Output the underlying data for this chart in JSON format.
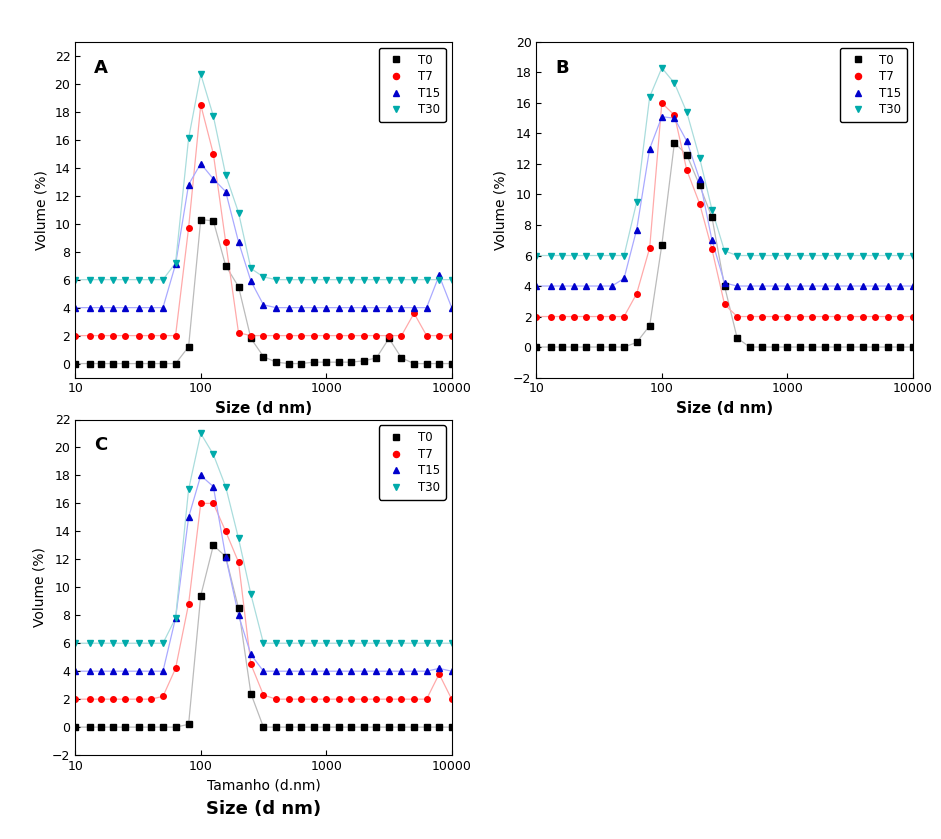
{
  "panels": [
    "A",
    "B",
    "C"
  ],
  "xlabel_A": "Size (d nm)",
  "xlabel_B": "Size (d nm)",
  "xlabel_C": "Tamanho (d.nm)",
  "xlabel_bottom": "Size (d nm)",
  "ylabel": "Volume (%)",
  "legend_labels": [
    "T0",
    "T7",
    "T15",
    "T30"
  ],
  "colors": [
    "black",
    "red",
    "#0000cc",
    "#00aaaa"
  ],
  "line_colors": [
    "#bbbbbb",
    "#ffaaaa",
    "#aaaaff",
    "#aadddd"
  ],
  "markers": [
    "s",
    "o",
    "^",
    "v"
  ],
  "xlim": [
    10,
    10000
  ],
  "A": {
    "ylim": [
      -1,
      23
    ],
    "yticks": [
      0,
      2,
      4,
      6,
      8,
      10,
      12,
      14,
      16,
      18,
      20,
      22
    ],
    "T0": {
      "x": [
        10,
        13,
        16,
        20,
        25,
        32,
        40,
        50,
        63,
        80,
        100,
        126,
        158,
        200,
        251,
        316,
        398,
        501,
        631,
        794,
        1000,
        1259,
        1585,
        1995,
        2512,
        3162,
        3981,
        5012,
        6310,
        7943,
        10000
      ],
      "y": [
        0,
        0,
        0,
        0,
        0,
        0,
        0,
        0,
        0,
        1.2,
        10.3,
        10.2,
        7.0,
        5.5,
        1.8,
        0.5,
        0.1,
        0,
        0,
        0.1,
        0.1,
        0.1,
        0.1,
        0.2,
        0.4,
        1.8,
        0.4,
        0,
        0,
        0,
        0
      ]
    },
    "T7": {
      "x": [
        10,
        13,
        16,
        20,
        25,
        32,
        40,
        50,
        63,
        80,
        100,
        126,
        158,
        200,
        251,
        316,
        398,
        501,
        631,
        794,
        1000,
        1259,
        1585,
        1995,
        2512,
        3162,
        3981,
        5012,
        6310,
        7943,
        10000
      ],
      "y": [
        2,
        2,
        2,
        2,
        2,
        2,
        2,
        2,
        2,
        9.7,
        18.5,
        15.0,
        8.7,
        2.2,
        2,
        2,
        2,
        2,
        2,
        2,
        2,
        2,
        2,
        2,
        2,
        2,
        2,
        3.6,
        2,
        2,
        2
      ]
    },
    "T15": {
      "x": [
        10,
        13,
        16,
        20,
        25,
        32,
        40,
        50,
        63,
        80,
        100,
        126,
        158,
        200,
        251,
        316,
        398,
        501,
        631,
        794,
        1000,
        1259,
        1585,
        1995,
        2512,
        3162,
        3981,
        5012,
        6310,
        7943,
        10000
      ],
      "y": [
        4,
        4,
        4,
        4,
        4,
        4,
        4,
        4,
        7.1,
        12.8,
        14.3,
        13.2,
        12.3,
        8.7,
        5.9,
        4.2,
        4,
        4,
        4,
        4,
        4,
        4,
        4,
        4,
        4,
        4,
        4,
        4,
        4,
        6.3,
        4
      ]
    },
    "T30": {
      "x": [
        10,
        13,
        16,
        20,
        25,
        32,
        40,
        50,
        63,
        80,
        100,
        126,
        158,
        200,
        251,
        316,
        398,
        501,
        631,
        794,
        1000,
        1259,
        1585,
        1995,
        2512,
        3162,
        3981,
        5012,
        6310,
        7943,
        10000
      ],
      "y": [
        6,
        6,
        6,
        6,
        6,
        6,
        6,
        6,
        7.2,
        16.1,
        20.7,
        17.7,
        13.5,
        10.8,
        6.8,
        6.2,
        6,
        6,
        6,
        6,
        6,
        6,
        6,
        6,
        6,
        6,
        6,
        6,
        6,
        6,
        6
      ]
    }
  },
  "B": {
    "ylim": [
      -2,
      20
    ],
    "yticks": [
      -2,
      0,
      2,
      4,
      6,
      8,
      10,
      12,
      14,
      16,
      18,
      20
    ],
    "T0": {
      "x": [
        10,
        13,
        16,
        20,
        25,
        32,
        40,
        50,
        63,
        80,
        100,
        126,
        158,
        200,
        251,
        316,
        398,
        501,
        631,
        794,
        1000,
        1259,
        1585,
        1995,
        2512,
        3162,
        3981,
        5012,
        6310,
        7943,
        10000
      ],
      "y": [
        0,
        0,
        0,
        0,
        0,
        0,
        0,
        0,
        0.3,
        1.4,
        6.7,
        13.4,
        12.6,
        10.6,
        8.5,
        4.0,
        0.6,
        0,
        0,
        0,
        0,
        0,
        0,
        0,
        0,
        0,
        0,
        0,
        0,
        0,
        0
      ]
    },
    "T7": {
      "x": [
        10,
        13,
        16,
        20,
        25,
        32,
        40,
        50,
        63,
        80,
        100,
        126,
        158,
        200,
        251,
        316,
        398,
        501,
        631,
        794,
        1000,
        1259,
        1585,
        1995,
        2512,
        3162,
        3981,
        5012,
        6310,
        7943,
        10000
      ],
      "y": [
        2,
        2,
        2,
        2,
        2,
        2,
        2,
        2,
        3.5,
        6.5,
        16.0,
        15.2,
        11.6,
        9.4,
        6.4,
        2.8,
        2,
        2,
        2,
        2,
        2,
        2,
        2,
        2,
        2,
        2,
        2,
        2,
        2,
        2,
        2
      ]
    },
    "T15": {
      "x": [
        10,
        13,
        16,
        20,
        25,
        32,
        40,
        50,
        63,
        80,
        100,
        126,
        158,
        200,
        251,
        316,
        398,
        501,
        631,
        794,
        1000,
        1259,
        1585,
        1995,
        2512,
        3162,
        3981,
        5012,
        6310,
        7943,
        10000
      ],
      "y": [
        4,
        4,
        4,
        4,
        4,
        4,
        4,
        4.5,
        7.7,
        13.0,
        15.1,
        15.0,
        13.5,
        11.0,
        7.0,
        4.2,
        4,
        4,
        4,
        4,
        4,
        4,
        4,
        4,
        4,
        4,
        4,
        4,
        4,
        4,
        4
      ]
    },
    "T30": {
      "x": [
        10,
        13,
        16,
        20,
        25,
        32,
        40,
        50,
        63,
        80,
        100,
        126,
        158,
        200,
        251,
        316,
        398,
        501,
        631,
        794,
        1000,
        1259,
        1585,
        1995,
        2512,
        3162,
        3981,
        5012,
        6310,
        7943,
        10000
      ],
      "y": [
        6,
        6,
        6,
        6,
        6,
        6,
        6,
        6,
        9.5,
        16.4,
        18.3,
        17.3,
        15.4,
        12.4,
        9.0,
        6.3,
        6,
        6,
        6,
        6,
        6,
        6,
        6,
        6,
        6,
        6,
        6,
        6,
        6,
        6,
        6
      ]
    }
  },
  "C": {
    "ylim": [
      -2,
      22
    ],
    "yticks": [
      -2,
      0,
      2,
      4,
      6,
      8,
      10,
      12,
      14,
      16,
      18,
      20,
      22
    ],
    "T0": {
      "x": [
        10,
        13,
        16,
        20,
        25,
        32,
        40,
        50,
        63,
        80,
        100,
        126,
        158,
        200,
        251,
        316,
        398,
        501,
        631,
        794,
        1000,
        1259,
        1585,
        1995,
        2512,
        3162,
        3981,
        5012,
        6310,
        7943,
        10000
      ],
      "y": [
        0,
        0,
        0,
        0,
        0,
        0,
        0,
        0,
        0,
        0.2,
        9.4,
        13.0,
        12.2,
        8.5,
        2.4,
        0,
        0,
        0,
        0,
        0,
        0,
        0,
        0,
        0,
        0,
        0,
        0,
        0,
        0,
        0,
        0
      ]
    },
    "T7": {
      "x": [
        10,
        13,
        16,
        20,
        25,
        32,
        40,
        50,
        63,
        80,
        100,
        126,
        158,
        200,
        251,
        316,
        398,
        501,
        631,
        794,
        1000,
        1259,
        1585,
        1995,
        2512,
        3162,
        3981,
        5012,
        6310,
        7943,
        10000
      ],
      "y": [
        2,
        2,
        2,
        2,
        2,
        2,
        2,
        2.2,
        4.2,
        8.8,
        16.0,
        16.0,
        14.0,
        11.8,
        4.5,
        2.3,
        2,
        2,
        2,
        2,
        2,
        2,
        2,
        2,
        2,
        2,
        2,
        2,
        2,
        3.8,
        2
      ]
    },
    "T15": {
      "x": [
        10,
        13,
        16,
        20,
        25,
        32,
        40,
        50,
        63,
        80,
        100,
        126,
        158,
        200,
        251,
        316,
        398,
        501,
        631,
        794,
        1000,
        1259,
        1585,
        1995,
        2512,
        3162,
        3981,
        5012,
        6310,
        7943,
        10000
      ],
      "y": [
        4,
        4,
        4,
        4,
        4,
        4,
        4,
        4,
        7.8,
        15.0,
        18.0,
        17.2,
        12.2,
        8.0,
        5.2,
        4,
        4,
        4,
        4,
        4,
        4,
        4,
        4,
        4,
        4,
        4,
        4,
        4,
        4,
        4.2,
        4
      ]
    },
    "T30": {
      "x": [
        10,
        13,
        16,
        20,
        25,
        32,
        40,
        50,
        63,
        80,
        100,
        126,
        158,
        200,
        251,
        316,
        398,
        501,
        631,
        794,
        1000,
        1259,
        1585,
        1995,
        2512,
        3162,
        3981,
        5012,
        6310,
        7943,
        10000
      ],
      "y": [
        6,
        6,
        6,
        6,
        6,
        6,
        6,
        6,
        7.8,
        17.0,
        21.0,
        19.5,
        17.2,
        13.5,
        9.5,
        6,
        6,
        6,
        6,
        6,
        6,
        6,
        6,
        6,
        6,
        6,
        6,
        6,
        6,
        6,
        6
      ]
    }
  }
}
